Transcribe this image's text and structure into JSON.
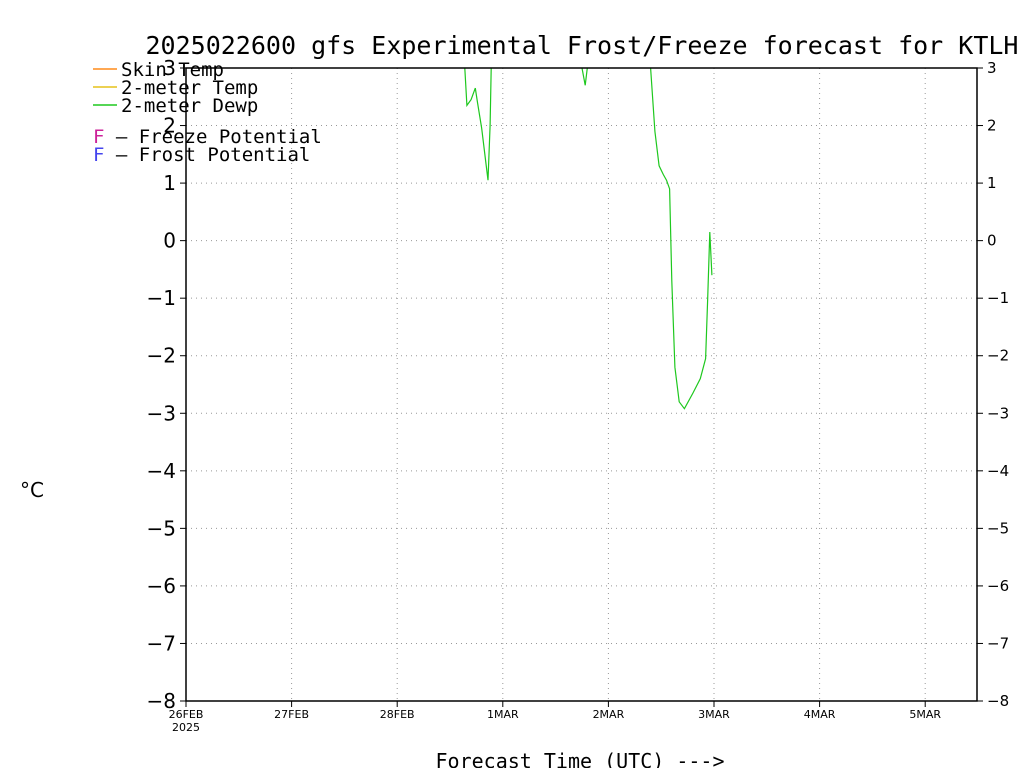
{
  "chart_data": {
    "type": "line",
    "title": "2025022600 gfs Experimental Frost/Freeze forecast for KTLH",
    "xlabel": "Forecast Time (UTC) --->",
    "ylabel": "°C",
    "ylim": [
      -8,
      3
    ],
    "yticks": [
      "3",
      "2",
      "1",
      "0",
      "−1",
      "−2",
      "−3",
      "−4",
      "−5",
      "−6",
      "−7",
      "−8"
    ],
    "xlim_days": [
      0,
      7.5
    ],
    "xticks": [
      {
        "day": 0,
        "label": "26FEB",
        "sublabel": "2025"
      },
      {
        "day": 1,
        "label": "27FEB"
      },
      {
        "day": 2,
        "label": "28FEB"
      },
      {
        "day": 3,
        "label": "1MAR"
      },
      {
        "day": 4,
        "label": "2MAR"
      },
      {
        "day": 5,
        "label": "3MAR"
      },
      {
        "day": 6,
        "label": "4MAR"
      },
      {
        "day": 7,
        "label": "5MAR"
      }
    ],
    "grid": true,
    "legend_placement": "top-left",
    "series": [
      {
        "name": "Skin Temp",
        "color": "#ff8c1a",
        "points": []
      },
      {
        "name": "2-meter Temp",
        "color": "#e6c21a",
        "points": []
      },
      {
        "name": "2-meter Dewp",
        "color": "#1ec81e",
        "points": [
          [
            2.64,
            3.0
          ],
          [
            2.66,
            2.35
          ],
          [
            2.7,
            2.45
          ],
          [
            2.74,
            2.65
          ],
          [
            2.76,
            2.4
          ],
          [
            2.8,
            1.95
          ],
          [
            2.84,
            1.35
          ],
          [
            2.86,
            1.05
          ],
          [
            2.88,
            2.0
          ],
          [
            2.89,
            3.0
          ],
          null,
          [
            3.75,
            3.0
          ],
          [
            3.78,
            2.7
          ],
          [
            3.8,
            3.0
          ],
          null,
          [
            4.4,
            3.0
          ],
          [
            4.44,
            1.9
          ],
          [
            4.48,
            1.3
          ],
          [
            4.52,
            1.15
          ],
          [
            4.55,
            1.05
          ],
          [
            4.58,
            0.9
          ],
          [
            4.6,
            -0.7
          ],
          [
            4.63,
            -2.2
          ],
          [
            4.67,
            -2.8
          ],
          [
            4.72,
            -2.92
          ],
          [
            4.8,
            -2.65
          ],
          [
            4.87,
            -2.4
          ],
          [
            4.92,
            -2.05
          ],
          [
            4.94,
            -1.0
          ],
          [
            4.96,
            0.15
          ],
          [
            4.98,
            -0.6
          ]
        ]
      }
    ],
    "annotations": [
      {
        "symbol": "F",
        "text": " — Freeze Potential",
        "color": "#cc2299"
      },
      {
        "symbol": "F",
        "text": " — Frost Potential",
        "color": "#4444ee"
      }
    ]
  }
}
